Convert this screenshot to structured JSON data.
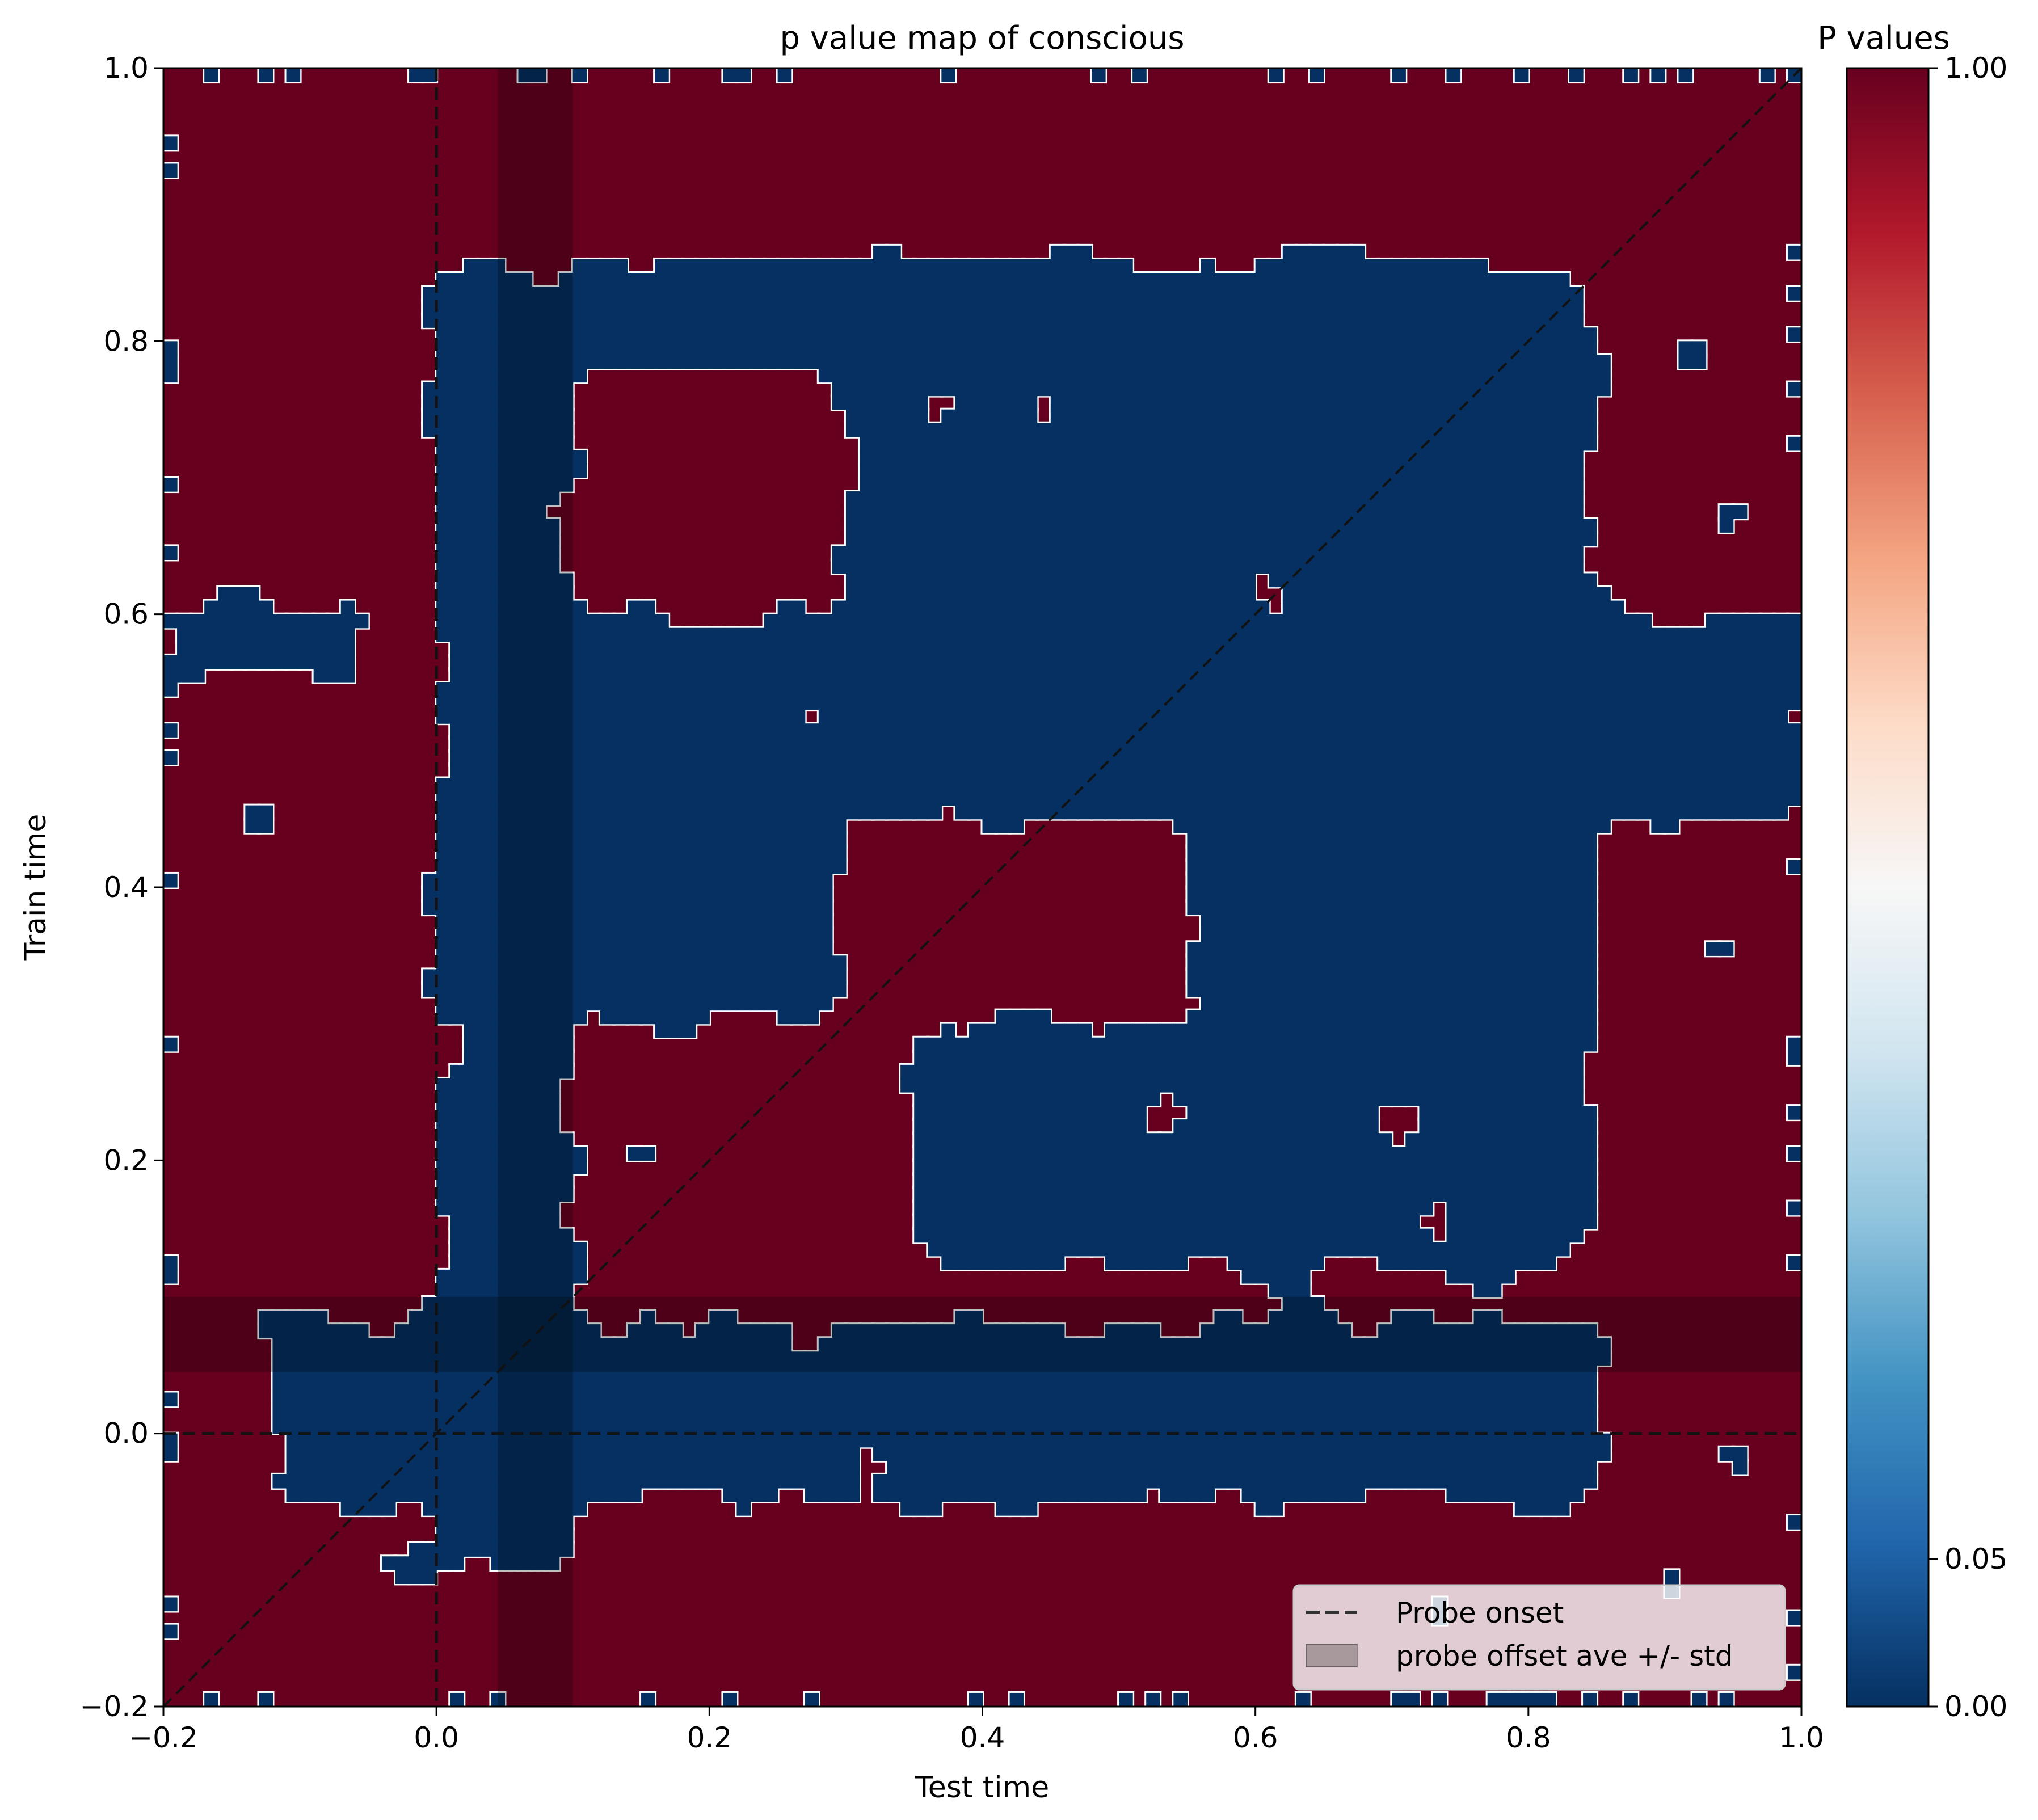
{
  "chart_data": {
    "type": "heatmap",
    "title": "p value map of conscious",
    "xlabel": "Test time",
    "ylabel": "Train time",
    "xlim": [
      -0.2,
      1.0
    ],
    "ylim": [
      -0.2,
      1.0
    ],
    "xticks": [
      -0.2,
      0.0,
      0.2,
      0.4,
      0.6,
      0.8,
      1.0
    ],
    "yticks": [
      -0.2,
      0.0,
      0.2,
      0.4,
      0.6,
      0.8,
      1.0
    ],
    "xtick_labels": [
      "−0.2",
      "0.0",
      "0.2",
      "0.4",
      "0.6",
      "0.8",
      "1.0"
    ],
    "ytick_labels": [
      "−0.2",
      "0.0",
      "0.2",
      "0.4",
      "0.6",
      "0.8",
      "1.0"
    ],
    "colormap": "RdBu_r",
    "colorbar": {
      "title": "P values",
      "ticks": [
        0.0,
        0.05,
        1.0
      ],
      "tick_labels": [
        "0.00",
        "0.05",
        "1.00"
      ],
      "colors": [
        "#053061",
        "#2166ac",
        "#4393c3",
        "#92c5de",
        "#d1e5f0",
        "#f7f7f7",
        "#fddbc7",
        "#f4a582",
        "#d6604d",
        "#b2182b",
        "#67001f"
      ]
    },
    "legend": {
      "position": "lower-right",
      "entries": [
        {
          "label": "Probe onset",
          "style": "dashed-line"
        },
        {
          "label": "probe offset ave +/- std",
          "style": "shaded-band"
        }
      ]
    },
    "reference_lines": {
      "probe_onset_x": 0.0,
      "probe_onset_y": 0.0,
      "diagonal": [
        [
          -0.2,
          -0.2
        ],
        [
          1.0,
          1.0
        ]
      ]
    },
    "probe_offset_band": [
      0.045,
      0.1
    ],
    "high_p_color": "#67001f",
    "low_p_color": "#053061",
    "significant_regions_note_values": {
      "low_p_blocks": [
        {
          "x": [
            0.0,
            0.1
          ],
          "y": [
            -0.1,
            0.85
          ]
        },
        {
          "x": [
            -0.12,
            0.85
          ],
          "y": [
            -0.05,
            0.08
          ]
        },
        {
          "x": [
            0.1,
            0.85
          ],
          "y": [
            0.78,
            0.86
          ]
        },
        {
          "x": [
            0.3,
            0.85
          ],
          "y": [
            0.45,
            0.78
          ]
        },
        {
          "x": [
            0.1,
            0.3
          ],
          "y": [
            0.3,
            0.6
          ]
        },
        {
          "x": [
            0.55,
            0.85
          ],
          "y": [
            0.12,
            0.45
          ]
        },
        {
          "x": [
            0.82,
            1.0
          ],
          "y": [
            0.45,
            0.6
          ]
        },
        {
          "x": [
            -0.2,
            -0.05
          ],
          "y": [
            0.55,
            0.6
          ]
        },
        {
          "x": [
            0.35,
            0.55
          ],
          "y": [
            0.12,
            0.3
          ]
        }
      ]
    }
  }
}
